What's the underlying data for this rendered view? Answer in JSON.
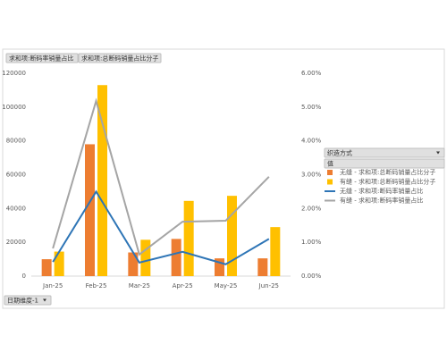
{
  "chart_data": {
    "type": "combo",
    "field_buttons": [
      "求和项:断码率销量占比",
      "求和项:总断码销量占比分子"
    ],
    "filter_field": "织造方式",
    "values_button": "值",
    "axis_field": "日期维度-1",
    "categories": [
      "Jan-25",
      "Feb-25",
      "Mar-25",
      "Apr-25",
      "May-25",
      "Jun-25"
    ],
    "series": [
      {
        "name": "无缝 - 求和项:总断码销量占比分子",
        "kind": "bar",
        "color": "#ed7d31",
        "values": [
          10000,
          78000,
          14000,
          22000,
          10500,
          10500
        ]
      },
      {
        "name": "有缝 - 求和项:总断码销量占比分子",
        "kind": "bar",
        "color": "#ffc000",
        "values": [
          14500,
          113000,
          21500,
          44500,
          47500,
          29000
        ]
      },
      {
        "name": "无缝 - 求和项:断码率销量占比",
        "kind": "line",
        "axis": "y2",
        "color": "#2e75b6",
        "values": [
          0.42,
          2.5,
          0.4,
          0.72,
          0.35,
          1.1
        ]
      },
      {
        "name": "有缝 - 求和项:断码率销量占比",
        "kind": "line",
        "axis": "y2",
        "color": "#a5a5a5",
        "values": [
          0.82,
          5.18,
          0.64,
          1.61,
          1.64,
          2.94
        ]
      }
    ],
    "ylim": [
      0,
      120000
    ],
    "yticks": [
      0,
      20000,
      40000,
      60000,
      80000,
      100000,
      120000
    ],
    "y2lim": [
      0,
      6
    ],
    "y2ticks": [
      {
        "value": 0,
        "label": "0.00%"
      },
      {
        "value": 1,
        "label": "1.00%"
      },
      {
        "value": 2,
        "label": "2.00%"
      },
      {
        "value": 3,
        "label": "3.00%"
      },
      {
        "value": 4,
        "label": "4.00%"
      },
      {
        "value": 5,
        "label": "5.00%"
      },
      {
        "value": 6,
        "label": "6.00%"
      }
    ],
    "grid": false,
    "legend": "right"
  }
}
